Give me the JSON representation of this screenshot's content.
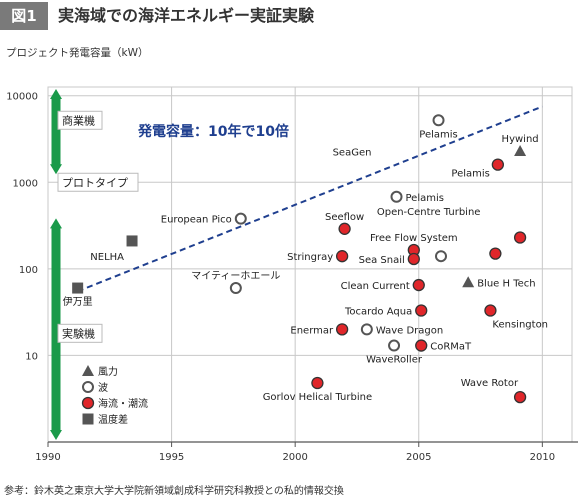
{
  "figure": {
    "badge": "図1",
    "title": "実海域での海洋エネルギー実証実験",
    "source": "参考：鈴木英之東京大学大学院新領域創成科学研究科教授との私的情報交換"
  },
  "chart_data": {
    "type": "scatter",
    "title": "",
    "xlabel": "",
    "ylabel": "プロジェクト発電容量（kW）",
    "x_ticks": [
      1990,
      1995,
      2000,
      2005,
      2010
    ],
    "y_ticks": [
      {
        "value": 10,
        "label": "10"
      },
      {
        "value": 100,
        "label": "100"
      },
      {
        "value": 1000,
        "label": "1000"
      },
      {
        "value": 10000,
        "label": "10000"
      }
    ],
    "xlim": [
      1990,
      2011.2
    ],
    "ylim": [
      1,
      12600
    ],
    "y_scale": "log",
    "grid": true,
    "trend": {
      "label": "発電容量：10年で10倍",
      "from": [
        1991.2,
        55
      ],
      "to": [
        2010,
        7500
      ],
      "color": "#1f3f8f"
    },
    "stages": [
      {
        "label": "商業機"
      },
      {
        "label": "プロトタイプ"
      },
      {
        "label": "実験機"
      }
    ],
    "legend": {
      "placement": "bottom-left",
      "items": [
        {
          "label": "風力",
          "marker": "triangle"
        },
        {
          "label": "波",
          "marker": "open-circle"
        },
        {
          "label": "海流・潮流",
          "marker": "red-circle"
        },
        {
          "label": "温度差",
          "marker": "square"
        }
      ]
    },
    "colors": {
      "tidal": "#e0262a",
      "marker_edge": "#333333",
      "gray": "#555555",
      "stage_bar": "#1a9a4a",
      "grid": "#c8c8c8"
    },
    "points": [
      {
        "name": "伊万里",
        "category": "温度差",
        "x": 1991.2,
        "y": 60,
        "label_side": "below"
      },
      {
        "name": "NELHA",
        "category": "温度差",
        "x": 1993.4,
        "y": 210,
        "label_side": "below-left"
      },
      {
        "name": "European Pico",
        "category": "波",
        "x": 1997.8,
        "y": 380,
        "label_side": "left"
      },
      {
        "name": "マイティーホエール",
        "category": "波",
        "x": 1997.6,
        "y": 60,
        "label_side": "above"
      },
      {
        "name": "SeaGen",
        "category": "海流・潮流",
        "x": 2008.2,
        "y": 1600,
        "label_side": "none"
      },
      {
        "name": "Seeflow",
        "category": "海流・潮流",
        "x": 2002.0,
        "y": 290,
        "label_side": "above"
      },
      {
        "name": "Stringray",
        "category": "海流・潮流",
        "x": 2001.9,
        "y": 140,
        "label_side": "left"
      },
      {
        "name": "Free Flow System",
        "category": "海流・潮流",
        "x": 2004.8,
        "y": 165,
        "label_side": "above"
      },
      {
        "name": "Sea Snail",
        "category": "海流・潮流",
        "x": 2004.8,
        "y": 130,
        "label_side": "left"
      },
      {
        "name": "Pelamis",
        "category": "波",
        "x": 2004.1,
        "y": 680,
        "label_side": "right"
      },
      {
        "name": "Pelamis",
        "category": "波",
        "x": 2005.8,
        "y": 5200,
        "label_side": "below"
      },
      {
        "name": "Pelamis",
        "category": "波",
        "x": 2005.9,
        "y": 140,
        "label_side": "none"
      },
      {
        "name": "Open-Centre Turbine",
        "category": "海流・潮流",
        "x": 2008.1,
        "y": 150,
        "label_side": "none"
      },
      {
        "name": "Open-Centre Turbine",
        "category": "海流・潮流",
        "x": 2009.1,
        "y": 230,
        "label_side": "none"
      },
      {
        "name": "Clean Current",
        "category": "海流・潮流",
        "x": 2005.0,
        "y": 65,
        "label_side": "left"
      },
      {
        "name": "Tocardo Aqua",
        "category": "海流・潮流",
        "x": 2005.1,
        "y": 33,
        "label_side": "left"
      },
      {
        "name": "Kensington",
        "category": "海流・潮流",
        "x": 2007.9,
        "y": 33,
        "label_side": "below-right"
      },
      {
        "name": "Enermar",
        "category": "海流・潮流",
        "x": 2001.9,
        "y": 20,
        "label_side": "left"
      },
      {
        "name": "Wave Dragon",
        "category": "波",
        "x": 2002.9,
        "y": 20,
        "label_side": "right"
      },
      {
        "name": "WaveRoller",
        "category": "波",
        "x": 2004.0,
        "y": 13,
        "label_side": "below"
      },
      {
        "name": "CoRMaT",
        "category": "海流・潮流",
        "x": 2005.1,
        "y": 13,
        "label_side": "right"
      },
      {
        "name": "Gorlov Helical Turbine",
        "category": "海流・潮流",
        "x": 2000.9,
        "y": 4.8,
        "label_side": "below"
      },
      {
        "name": "Wave Rotor",
        "category": "海流・潮流",
        "x": 2009.1,
        "y": 3.3,
        "label_side": "above-left"
      },
      {
        "name": "Hywind",
        "category": "風力",
        "x": 2009.1,
        "y": 2300,
        "label_side": "above"
      },
      {
        "name": "Blue H Tech",
        "category": "風力",
        "x": 2007.0,
        "y": 70,
        "label_side": "right"
      }
    ],
    "annotations": [
      {
        "text": "SeaGen",
        "x": 2002.3,
        "y": 2050
      },
      {
        "text": "Pelamis",
        "x": 2007.1,
        "y": 1160
      },
      {
        "text": "Open-Centre Turbine",
        "x": 2005.4,
        "y": 420
      }
    ]
  }
}
